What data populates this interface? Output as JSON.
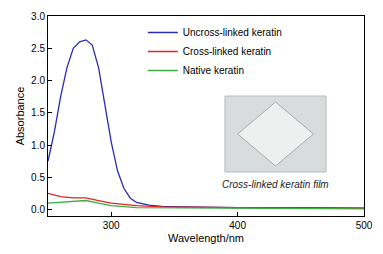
{
  "chart_data": {
    "type": "line",
    "x_label": "Wavelength/nm",
    "y_label": "Absorbance",
    "xlim": [
      250,
      500
    ],
    "xticks": [
      300,
      400,
      500
    ],
    "ylim": [
      -0.1,
      3.0
    ],
    "yticks": [
      {
        "value": 0,
        "label": "0.0"
      },
      {
        "value": 0.5,
        "label": "0.5"
      },
      {
        "value": 1,
        "label": "1.0"
      },
      {
        "value": 1.5,
        "label": "1.5"
      },
      {
        "value": 2,
        "label": "2.0"
      },
      {
        "value": 2.5,
        "label": "2.5"
      },
      {
        "value": 3,
        "label": "3.0"
      }
    ],
    "grid": false,
    "legend": "upper right",
    "annotations": [
      "Cross-linked keratin film"
    ],
    "series": [
      {
        "name": "Uncross-linked keratin",
        "color": "#2a2ab5",
        "x": [
          250,
          255,
          260,
          265,
          270,
          275,
          280,
          285,
          290,
          295,
          300,
          305,
          310,
          315,
          320,
          330,
          340,
          360,
          400,
          450,
          500
        ],
        "values": [
          0.75,
          1.2,
          1.75,
          2.2,
          2.5,
          2.6,
          2.63,
          2.55,
          2.2,
          1.65,
          1.05,
          0.6,
          0.33,
          0.18,
          0.11,
          0.07,
          0.05,
          0.04,
          0.03,
          0.03,
          0.02
        ]
      },
      {
        "name": "Cross-linked keratin",
        "color": "#e02520",
        "x": [
          250,
          260,
          270,
          280,
          290,
          300,
          320,
          340,
          400,
          500
        ],
        "values": [
          0.25,
          0.2,
          0.18,
          0.18,
          0.14,
          0.1,
          0.06,
          0.04,
          0.03,
          0.02
        ]
      },
      {
        "name": "Native keratin",
        "color": "#3cae44",
        "x": [
          250,
          260,
          270,
          280,
          290,
          300,
          320,
          400,
          500
        ],
        "values": [
          0.1,
          0.11,
          0.13,
          0.14,
          0.1,
          0.06,
          0.03,
          0.02,
          0.01
        ]
      }
    ]
  }
}
